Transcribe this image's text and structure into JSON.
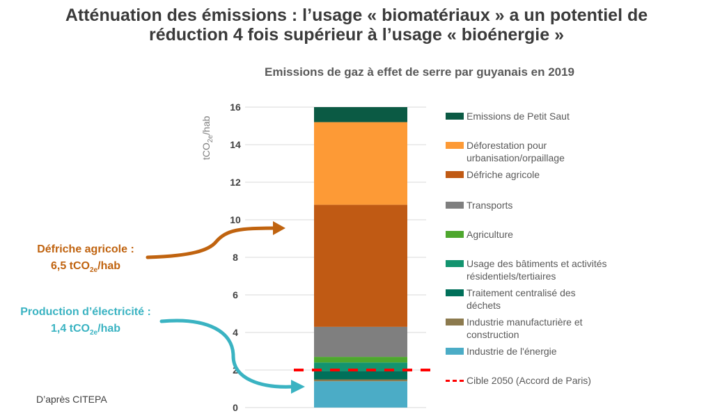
{
  "headline": {
    "line1": "Atténuation des émissions : l’usage « biomatériaux » a un potentiel de",
    "line2": "réduction 4 fois supérieur à l’usage « bioénergie »"
  },
  "chart_data": {
    "type": "bar",
    "stacked": true,
    "title": "Emissions de gaz à effet de serre par guyanais en 2019",
    "ylabel": "tCO2e/hab",
    "ylim": [
      0,
      16
    ],
    "yticks": [
      "0",
      "2",
      "4",
      "6",
      "8",
      "10",
      "12",
      "14",
      "16"
    ],
    "categories": [
      "2019"
    ],
    "series": [
      {
        "name": "Industrie de l'énergie",
        "values": [
          1.4
        ],
        "color": "#4bacc6"
      },
      {
        "name": "Industrie manufacturière et construction",
        "values": [
          0.1
        ],
        "color": "#8c7a4e"
      },
      {
        "name": "Traitement centralisé des déchets",
        "values": [
          0.45
        ],
        "color": "#00705a"
      },
      {
        "name": "Usage des bâtiments et activités résidentiels/tertiaires",
        "values": [
          0.45
        ],
        "color": "#13946f"
      },
      {
        "name": "Agriculture",
        "values": [
          0.3
        ],
        "color": "#4ea72e"
      },
      {
        "name": "Transports",
        "values": [
          1.6
        ],
        "color": "#7f7f7f"
      },
      {
        "name": "Défriche agricole",
        "values": [
          6.5
        ],
        "color": "#c05a14"
      },
      {
        "name": "Déforestation pour urbanisation/orpaillage",
        "values": [
          4.4
        ],
        "color": "#fd9a36"
      },
      {
        "name": "Emissions de Petit Saut",
        "values": [
          0.8
        ],
        "color": "#0b5a44"
      }
    ],
    "target_line": {
      "name": "Cible 2050 (Accord de Paris)",
      "value": 2.0,
      "color": "#ff0000"
    },
    "legend_placement": "right",
    "grid": true
  },
  "legend_items": [
    {
      "label": "Emissions de Petit Saut",
      "color": "#0b5a44"
    },
    {
      "label": "Déforestation pour urbanisation/orpaillage",
      "color": "#fd9a36",
      "lines": [
        "Déforestation pour",
        "urbanisation/orpaillage"
      ]
    },
    {
      "label": "Défriche agricole",
      "color": "#c05a14"
    },
    {
      "label": "Transports",
      "color": "#7f7f7f"
    },
    {
      "label": "Agriculture",
      "color": "#4ea72e"
    },
    {
      "label": "Usage des bâtiments et activités résidentiels/tertiaires",
      "color": "#13946f",
      "lines": [
        "Usage des bâtiments et activités",
        "résidentiels/tertiaires"
      ]
    },
    {
      "label": "Traitement centralisé des déchets",
      "color": "#00705a",
      "lines": [
        "Traitement centralisé des",
        "déchets"
      ]
    },
    {
      "label": "Industrie manufacturière et construction",
      "color": "#8c7a4e",
      "lines": [
        "Industrie manufacturière et",
        "construction"
      ]
    },
    {
      "label": "Industrie de l'énergie",
      "color": "#4bacc6"
    },
    {
      "label": "Cible 2050 (Accord de Paris)",
      "color": "#ff0000",
      "dashed": true
    }
  ],
  "callouts": {
    "defriche": {
      "label": "Défriche agricole :",
      "value": "6,5 tCO",
      "sub": "2e",
      "unit": "/hab",
      "color": "#c0630f"
    },
    "electricite": {
      "label": "Production d’électricité :",
      "value": "1,4 tCO",
      "sub": "2e",
      "unit": "/hab",
      "color": "#3ab3c2"
    }
  },
  "ylabel_parts": {
    "a": "tCO",
    "sub": "2e",
    "b": "/hab"
  },
  "source": "D’après CITEPA"
}
